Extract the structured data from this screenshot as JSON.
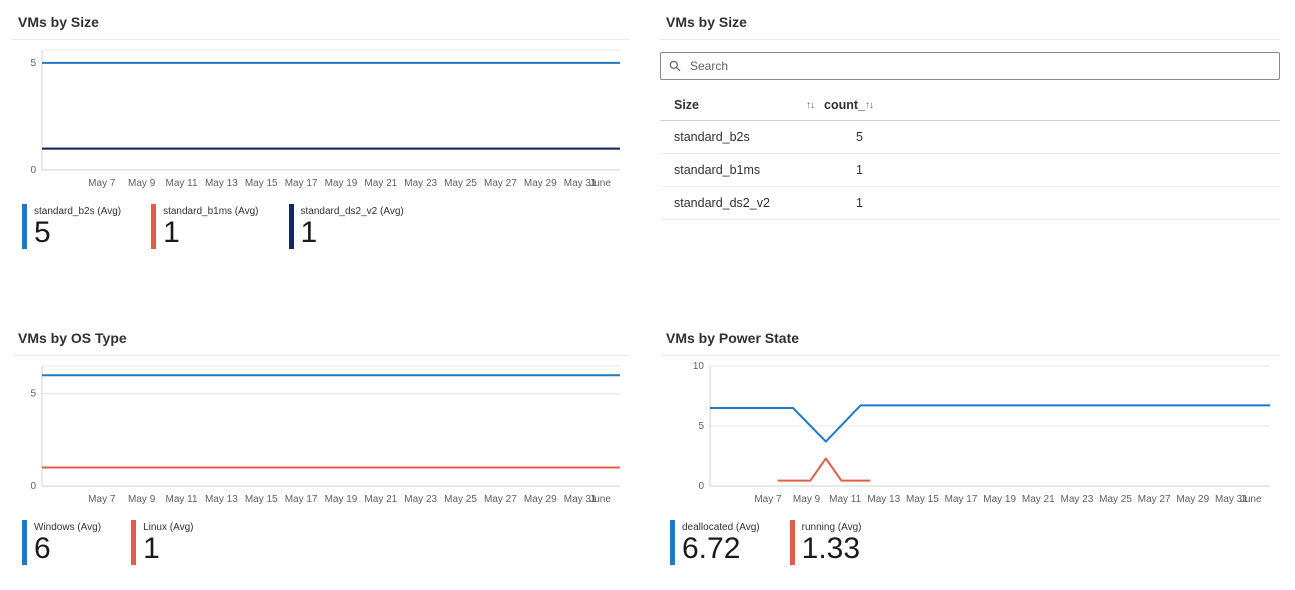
{
  "panels": {
    "size_chart": {
      "title": "VMs by Size",
      "legend": [
        {
          "label": "standard_b2s (Avg)",
          "value": "5",
          "color": "#2079C6"
        },
        {
          "label": "standard_b1ms (Avg)",
          "value": "1",
          "color": "#E25D49"
        },
        {
          "label": "standard_ds2_v2 (Avg)",
          "value": "1",
          "color": "#12286B"
        }
      ]
    },
    "size_table": {
      "title": "VMs by Size",
      "search_placeholder": "Search",
      "columns": [
        {
          "label": "Size",
          "sort_icon": "↑↓"
        },
        {
          "label": "count_",
          "sort_icon": "↑↓"
        }
      ],
      "rows": [
        {
          "size": "standard_b2s",
          "count": "5"
        },
        {
          "size": "standard_b1ms",
          "count": "1"
        },
        {
          "size": "standard_ds2_v2",
          "count": "1"
        }
      ]
    },
    "os_chart": {
      "title": "VMs by OS Type",
      "legend": [
        {
          "label": "Windows (Avg)",
          "value": "6",
          "color": "#2079C6"
        },
        {
          "label": "Linux (Avg)",
          "value": "1",
          "color": "#E25D49"
        }
      ]
    },
    "power_chart": {
      "title": "VMs by Power State",
      "legend": [
        {
          "label": "deallocated (Avg)",
          "value": "6.72",
          "color": "#2079C6"
        },
        {
          "label": "running (Avg)",
          "value": "1.33",
          "color": "#E25D49"
        }
      ]
    }
  },
  "chart_data": [
    {
      "type": "line",
      "title": "VMs by Size",
      "x_domain": [
        4,
        33
      ],
      "ylim": [
        0,
        5.6
      ],
      "y_ticks": [
        0,
        5
      ],
      "x_ticks": [
        {
          "v": 7,
          "label": "May 7"
        },
        {
          "v": 9,
          "label": "May 9"
        },
        {
          "v": 11,
          "label": "May 11"
        },
        {
          "v": 13,
          "label": "May 13"
        },
        {
          "v": 15,
          "label": "May 15"
        },
        {
          "v": 17,
          "label": "May 17"
        },
        {
          "v": 19,
          "label": "May 19"
        },
        {
          "v": 21,
          "label": "May 21"
        },
        {
          "v": 23,
          "label": "May 23"
        },
        {
          "v": 25,
          "label": "May 25"
        },
        {
          "v": 27,
          "label": "May 27"
        },
        {
          "v": 29,
          "label": "May 29"
        },
        {
          "v": 31,
          "label": "May 31"
        },
        {
          "v": 32,
          "label": "June"
        }
      ],
      "series": [
        {
          "name": "standard_b2s (Avg)",
          "color": "#2079C6",
          "avg": 5,
          "points": [
            [
              4,
              5
            ],
            [
              33,
              5
            ]
          ]
        },
        {
          "name": "standard_b1ms (Avg)",
          "color": "#E25D49",
          "avg": 1,
          "points": [
            [
              4,
              1
            ],
            [
              33,
              1
            ]
          ]
        },
        {
          "name": "standard_ds2_v2 (Avg)",
          "color": "#12286B",
          "avg": 1,
          "points": [
            [
              4,
              1
            ],
            [
              33,
              1
            ]
          ]
        }
      ]
    },
    {
      "type": "line",
      "title": "VMs by OS Type",
      "x_domain": [
        4,
        33
      ],
      "ylim": [
        0,
        6.5
      ],
      "y_ticks": [
        0,
        5
      ],
      "x_ticks": [
        {
          "v": 7,
          "label": "May 7"
        },
        {
          "v": 9,
          "label": "May 9"
        },
        {
          "v": 11,
          "label": "May 11"
        },
        {
          "v": 13,
          "label": "May 13"
        },
        {
          "v": 15,
          "label": "May 15"
        },
        {
          "v": 17,
          "label": "May 17"
        },
        {
          "v": 19,
          "label": "May 19"
        },
        {
          "v": 21,
          "label": "May 21"
        },
        {
          "v": 23,
          "label": "May 23"
        },
        {
          "v": 25,
          "label": "May 25"
        },
        {
          "v": 27,
          "label": "May 27"
        },
        {
          "v": 29,
          "label": "May 29"
        },
        {
          "v": 31,
          "label": "May 31"
        },
        {
          "v": 32,
          "label": "June"
        }
      ],
      "series": [
        {
          "name": "Windows (Avg)",
          "color": "#2079C6",
          "avg": 6,
          "points": [
            [
              4,
              6
            ],
            [
              33,
              6
            ]
          ]
        },
        {
          "name": "Linux (Avg)",
          "color": "#E25D49",
          "avg": 1,
          "points": [
            [
              4,
              1
            ],
            [
              33,
              1
            ]
          ]
        }
      ]
    },
    {
      "type": "line",
      "title": "VMs by Power State",
      "x_domain": [
        4,
        33
      ],
      "ylim": [
        0,
        10
      ],
      "y_ticks": [
        0,
        5,
        10
      ],
      "x_ticks": [
        {
          "v": 7,
          "label": "May 7"
        },
        {
          "v": 9,
          "label": "May 9"
        },
        {
          "v": 11,
          "label": "May 11"
        },
        {
          "v": 13,
          "label": "May 13"
        },
        {
          "v": 15,
          "label": "May 15"
        },
        {
          "v": 17,
          "label": "May 17"
        },
        {
          "v": 19,
          "label": "May 19"
        },
        {
          "v": 21,
          "label": "May 21"
        },
        {
          "v": 23,
          "label": "May 23"
        },
        {
          "v": 25,
          "label": "May 25"
        },
        {
          "v": 27,
          "label": "May 27"
        },
        {
          "v": 29,
          "label": "May 29"
        },
        {
          "v": 31,
          "label": "May 31"
        },
        {
          "v": 32,
          "label": "June"
        }
      ],
      "series": [
        {
          "name": "deallocated (Avg)",
          "color": "#2079C6",
          "avg": 6.72,
          "points": [
            [
              4,
              6.5
            ],
            [
              8.3,
              6.5
            ],
            [
              10,
              3.7
            ],
            [
              11.8,
              6.72
            ],
            [
              33,
              6.72
            ]
          ]
        },
        {
          "name": "running (Avg)",
          "color": "#E25D49",
          "avg": 1.33,
          "points": [
            [
              7.5,
              0.45
            ],
            [
              9.2,
              0.45
            ],
            [
              10,
              2.3
            ],
            [
              10.8,
              0.45
            ],
            [
              12.3,
              0.45
            ]
          ]
        }
      ]
    }
  ]
}
